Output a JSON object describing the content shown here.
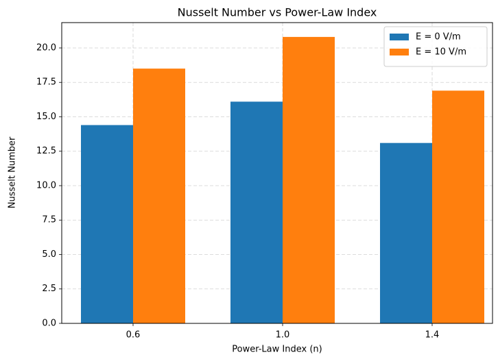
{
  "chart_data": {
    "type": "bar",
    "title": "Nusselt Number vs Power-Law Index",
    "x_label": "Power-Law Index (n)",
    "y_label": "Nusselt Number",
    "categories": [
      "0.6",
      "1.0",
      "1.4"
    ],
    "series": [
      {
        "name": "E = 0 V/m",
        "color": "#1f77b4",
        "values": [
          14.4,
          16.1,
          13.1
        ]
      },
      {
        "name": "E = 10 V/m",
        "color": "#ff7f0e",
        "values": [
          18.5,
          20.8,
          16.9
        ]
      }
    ],
    "ylim": [
      0,
      21.84
    ],
    "yticks": [
      {
        "value": 0,
        "label": "0.0"
      },
      2.5,
      {
        "value": 5,
        "label": "5.0"
      },
      7.5,
      {
        "value": 10,
        "label": "10.0"
      },
      12.5,
      {
        "value": 15,
        "label": "15.0"
      },
      17.5,
      {
        "value": 20,
        "label": "20.0"
      }
    ],
    "grid": true,
    "legend": "upper right"
  }
}
